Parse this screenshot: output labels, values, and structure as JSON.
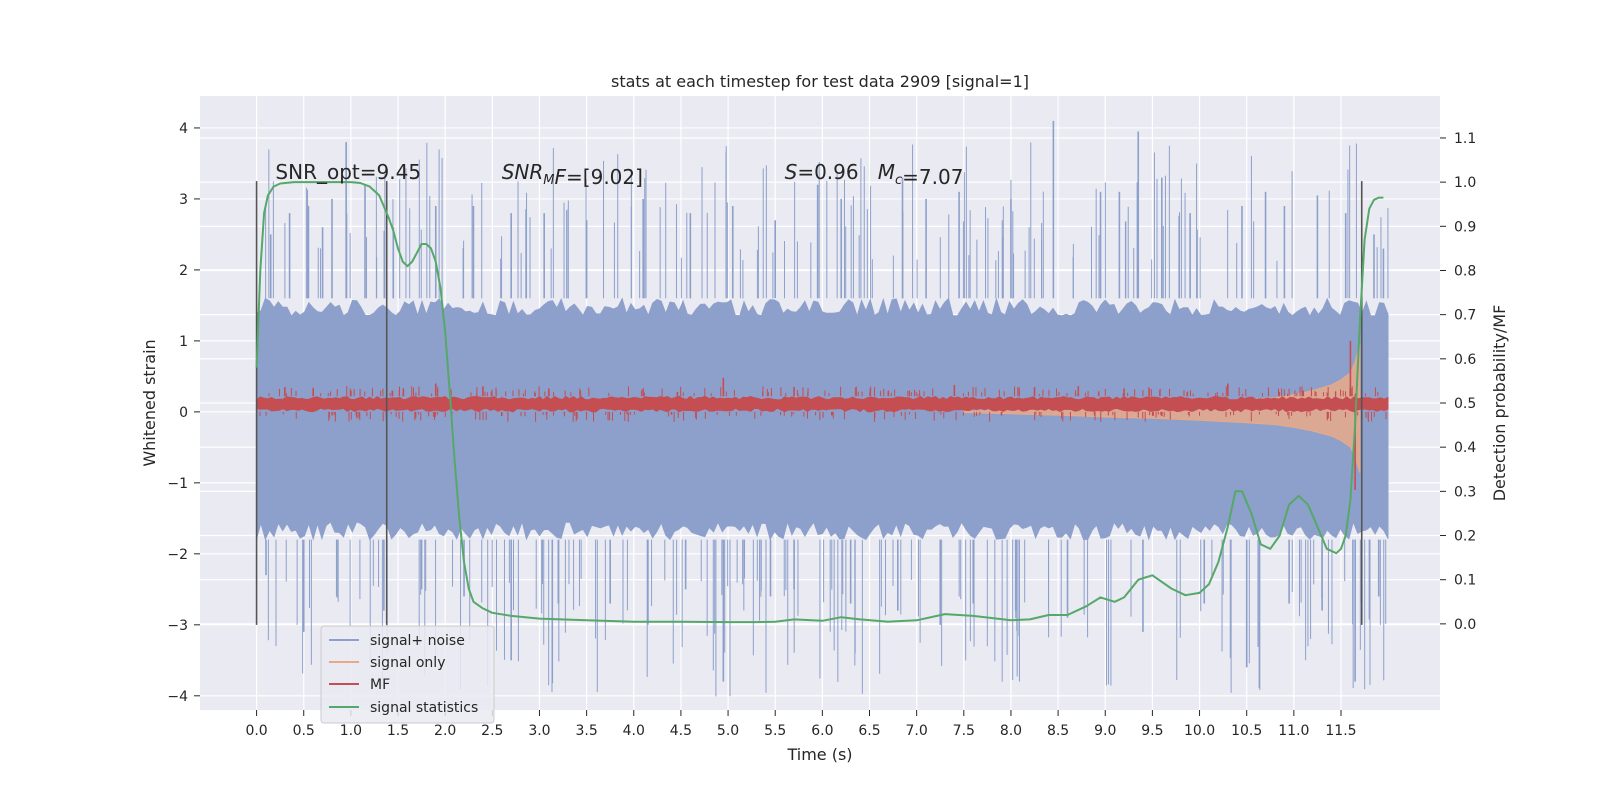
{
  "chart_data": {
    "type": "line",
    "title": "stats at each timestep for test data 2909 [signal=1]",
    "xlabel": "Time (s)",
    "ylabel": "Whitened strain",
    "ylabel_right": "Detection probability/MF",
    "xlim": [
      -0.6,
      12.55
    ],
    "ylim": [
      -4.2,
      4.45
    ],
    "ylim_right": [
      -0.195,
      1.195
    ],
    "xticks": [
      0.0,
      0.5,
      1.0,
      1.5,
      2.0,
      2.5,
      3.0,
      3.5,
      4.0,
      4.5,
      5.0,
      5.5,
      6.0,
      6.5,
      7.0,
      7.5,
      8.0,
      8.5,
      9.0,
      9.5,
      10.0,
      10.5,
      11.0,
      11.5
    ],
    "xtick_labels": [
      "0.0",
      "0.5",
      "1.0",
      "1.5",
      "2.0",
      "2.5",
      "3.0",
      "3.5",
      "4.0",
      "4.5",
      "5.0",
      "5.5",
      "6.0",
      "6.5",
      "7.0",
      "7.5",
      "8.0",
      "8.5",
      "9.0",
      "9.5",
      "10.0",
      "10.5",
      "11.0",
      "11.5"
    ],
    "yticks": [
      -4,
      -3,
      -2,
      -1,
      0,
      1,
      2,
      3,
      4
    ],
    "ytick_labels": [
      "−4",
      "−3",
      "−2",
      "−1",
      "0",
      "1",
      "2",
      "3",
      "4"
    ],
    "yticks_right": [
      0.0,
      0.1,
      0.2,
      0.3,
      0.4,
      0.5,
      0.6,
      0.7,
      0.8,
      0.9,
      1.0,
      1.1
    ],
    "ytick_labels_right": [
      "0.0",
      "0.1",
      "0.2",
      "0.3",
      "0.4",
      "0.5",
      "0.6",
      "0.7",
      "0.8",
      "0.9",
      "1.0",
      "1.1"
    ],
    "grid": true,
    "legend_position": "lower-left",
    "series": [
      {
        "name": "signal+ noise",
        "axis": "left",
        "color": "#8da0cb",
        "x_range": [
          0.0,
          12.0
        ],
        "band": [
          -1.8,
          1.6
        ],
        "spikes_up": [
          [
            0.15,
            2.5
          ],
          [
            0.35,
            2.8
          ],
          [
            0.55,
            2.9
          ],
          [
            0.7,
            2.6
          ],
          [
            0.8,
            3.0
          ],
          [
            0.95,
            3.8
          ],
          [
            1.15,
            3.2
          ],
          [
            1.45,
            2.6
          ],
          [
            1.9,
            2.9
          ],
          [
            2.3,
            2.9
          ],
          [
            2.7,
            2.8
          ],
          [
            3.05,
            2.8
          ],
          [
            3.5,
            2.7
          ],
          [
            4.1,
            3.0
          ],
          [
            4.6,
            2.8
          ],
          [
            5.05,
            2.9
          ],
          [
            5.5,
            2.7
          ],
          [
            5.95,
            3.2
          ],
          [
            6.2,
            3.0
          ],
          [
            6.85,
            3.3
          ],
          [
            7.1,
            3.0
          ],
          [
            7.45,
            3.1
          ],
          [
            8.0,
            3.0
          ],
          [
            8.45,
            4.1
          ],
          [
            8.95,
            3.1
          ],
          [
            9.15,
            3.1
          ],
          [
            9.35,
            3.95
          ],
          [
            9.6,
            3.3
          ],
          [
            9.9,
            2.8
          ],
          [
            10.45,
            2.9
          ],
          [
            10.7,
            3.1
          ],
          [
            10.9,
            2.9
          ],
          [
            11.25,
            3.05
          ],
          [
            11.55,
            2.8
          ],
          [
            11.85,
            2.5
          ],
          [
            11.95,
            2.3
          ]
        ],
        "spikes_down": [
          [
            0.1,
            -2.3
          ],
          [
            0.5,
            -3.1
          ],
          [
            0.85,
            -2.6
          ],
          [
            1.35,
            -2.8
          ],
          [
            1.75,
            -2.5
          ],
          [
            2.2,
            -2.6
          ],
          [
            2.7,
            -3.5
          ],
          [
            3.2,
            -2.7
          ],
          [
            3.75,
            -2.7
          ],
          [
            4.15,
            -3.0
          ],
          [
            4.55,
            -2.5
          ],
          [
            4.95,
            -3.8
          ],
          [
            5.45,
            -2.6
          ],
          [
            5.7,
            -2.5
          ],
          [
            6.3,
            -2.7
          ],
          [
            6.8,
            -2.8
          ],
          [
            7.25,
            -3.0
          ],
          [
            7.6,
            -2.7
          ],
          [
            8.05,
            -2.8
          ],
          [
            8.6,
            -2.9
          ],
          [
            9.4,
            -3.1
          ],
          [
            10.05,
            -2.7
          ],
          [
            10.5,
            -3.6
          ],
          [
            10.95,
            -2.7
          ],
          [
            11.3,
            -2.8
          ],
          [
            11.65,
            -3.8
          ],
          [
            11.9,
            -2.6
          ]
        ]
      },
      {
        "name": "signal only",
        "axis": "left",
        "color": "#e8a989",
        "x": [
          7.5,
          8.0,
          8.5,
          9.0,
          9.5,
          10.0,
          10.5,
          10.8,
          11.0,
          11.2,
          11.4,
          11.5,
          11.6,
          11.65,
          11.7
        ],
        "envelope": [
          0.01,
          0.03,
          0.05,
          0.08,
          0.1,
          0.13,
          0.17,
          0.2,
          0.24,
          0.3,
          0.38,
          0.45,
          0.55,
          0.7,
          0.95
        ]
      },
      {
        "name": "MF",
        "axis": "left",
        "color": "#c44e52",
        "x_range": [
          0.0,
          12.0
        ],
        "band": [
          0.0,
          0.22
        ],
        "spikes_up": [
          [
            0.3,
            0.35
          ],
          [
            0.6,
            0.33
          ],
          [
            1.0,
            0.3
          ],
          [
            1.9,
            0.4
          ],
          [
            2.4,
            0.36
          ],
          [
            3.1,
            0.33
          ],
          [
            4.1,
            0.33
          ],
          [
            4.95,
            0.48
          ],
          [
            5.7,
            0.35
          ],
          [
            6.7,
            0.3
          ],
          [
            7.4,
            0.38
          ],
          [
            8.25,
            0.35
          ],
          [
            9.2,
            0.33
          ],
          [
            10.3,
            0.4
          ],
          [
            11.1,
            0.3
          ],
          [
            11.6,
            1.0
          ]
        ],
        "spikes_down": [
          [
            0.8,
            -0.05
          ],
          [
            2.6,
            -0.06
          ],
          [
            4.4,
            -0.04
          ],
          [
            6.1,
            -0.05
          ],
          [
            7.9,
            -0.05
          ],
          [
            9.6,
            -0.06
          ],
          [
            11.65,
            -1.1
          ]
        ]
      },
      {
        "name": "signal statistics",
        "axis": "right",
        "color": "#55a868",
        "x": [
          0.0,
          0.04,
          0.08,
          0.12,
          0.18,
          0.25,
          0.4,
          0.6,
          0.8,
          1.0,
          1.1,
          1.2,
          1.3,
          1.4,
          1.45,
          1.5,
          1.55,
          1.6,
          1.65,
          1.7,
          1.75,
          1.8,
          1.85,
          1.9,
          1.95,
          2.0,
          2.05,
          2.1,
          2.15,
          2.2,
          2.25,
          2.3,
          2.4,
          2.5,
          2.7,
          3.0,
          3.5,
          4.0,
          4.5,
          5.0,
          5.3,
          5.5,
          5.7,
          6.0,
          6.2,
          6.4,
          6.7,
          7.0,
          7.3,
          7.6,
          8.0,
          8.2,
          8.4,
          8.6,
          8.8,
          8.95,
          9.1,
          9.2,
          9.35,
          9.5,
          9.7,
          9.85,
          10.0,
          10.1,
          10.2,
          10.3,
          10.38,
          10.45,
          10.55,
          10.65,
          10.75,
          10.85,
          10.95,
          11.05,
          11.15,
          11.25,
          11.35,
          11.45,
          11.5,
          11.55,
          11.6,
          11.65,
          11.7,
          11.75,
          11.8,
          11.85,
          11.9,
          11.95
        ],
        "y": [
          0.58,
          0.8,
          0.93,
          0.97,
          0.99,
          0.997,
          1.0,
          1.0,
          1.0,
          1.0,
          0.998,
          0.99,
          0.97,
          0.92,
          0.89,
          0.85,
          0.82,
          0.81,
          0.82,
          0.84,
          0.86,
          0.86,
          0.85,
          0.82,
          0.76,
          0.66,
          0.52,
          0.37,
          0.24,
          0.14,
          0.08,
          0.05,
          0.035,
          0.025,
          0.018,
          0.012,
          0.008,
          0.005,
          0.005,
          0.004,
          0.004,
          0.005,
          0.01,
          0.007,
          0.015,
          0.01,
          0.005,
          0.008,
          0.022,
          0.018,
          0.008,
          0.01,
          0.02,
          0.02,
          0.04,
          0.06,
          0.05,
          0.06,
          0.1,
          0.11,
          0.08,
          0.065,
          0.07,
          0.09,
          0.14,
          0.22,
          0.3,
          0.3,
          0.25,
          0.18,
          0.17,
          0.2,
          0.27,
          0.29,
          0.27,
          0.22,
          0.17,
          0.16,
          0.17,
          0.2,
          0.28,
          0.45,
          0.68,
          0.87,
          0.94,
          0.96,
          0.965,
          0.965
        ]
      }
    ],
    "vlines": [
      0.0,
      1.38,
      11.72
    ],
    "vline_range": [
      -3.0,
      3.25
    ],
    "annotations": [
      {
        "x": 0.2,
        "y": 3.25,
        "parts": [
          {
            "t": "SNR_opt=9.45"
          }
        ]
      },
      {
        "x": 2.6,
        "y": 3.25,
        "parts": [
          {
            "t": "SNR",
            "i": true
          },
          {
            "t": "M",
            "i": true,
            "sub": true
          },
          {
            "t": "F",
            "i": true
          },
          {
            "t": "=[9.02]"
          }
        ]
      },
      {
        "x": 5.6,
        "y": 3.25,
        "parts": [
          {
            "t": "S",
            "i": true
          },
          {
            "t": "=0.96   "
          },
          {
            "t": "M",
            "i": true
          },
          {
            "t": "c",
            "i": true,
            "sub": true
          },
          {
            "t": "=7.07"
          }
        ]
      }
    ]
  }
}
